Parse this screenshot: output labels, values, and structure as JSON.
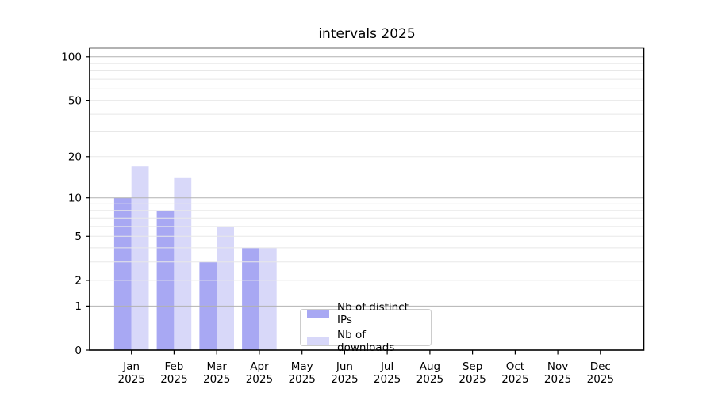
{
  "chart_data": {
    "type": "bar",
    "title": "intervals 2025",
    "categories": [
      "Jan",
      "Feb",
      "Mar",
      "Apr",
      "May",
      "Jun",
      "Jul",
      "Aug",
      "Sep",
      "Oct",
      "Nov",
      "Dec"
    ],
    "year": "2025",
    "series": [
      {
        "name": "Nb of distinct IPs",
        "color": "#a8a8f3",
        "values": [
          10,
          8,
          3,
          4,
          0,
          0,
          0,
          0,
          0,
          0,
          0,
          0
        ]
      },
      {
        "name": "Nb of downloads",
        "color": "#d8d8f9",
        "values": [
          17,
          14,
          6,
          4,
          0,
          0,
          0,
          0,
          0,
          0,
          0,
          0
        ]
      }
    ],
    "yscale": "log1p",
    "ylim": [
      0,
      115
    ],
    "y_ticks": [
      0,
      1,
      2,
      5,
      10,
      20,
      50,
      100
    ],
    "y_major_gridlines": [
      1,
      10,
      100
    ],
    "y_minor_gridlines": [
      2,
      3,
      4,
      5,
      6,
      7,
      8,
      9,
      20,
      30,
      40,
      50,
      60,
      70,
      80,
      90
    ],
    "xlabel": "",
    "ylabel": "",
    "grid": "horizontal major and minor, drawn over bars",
    "legend_position": "inside, lower center"
  },
  "colors": {
    "grid_major": "#b2b2b2",
    "grid_minor": "#e8e8e8",
    "axis": "#000000",
    "text": "#000000",
    "background": "#ffffff"
  }
}
